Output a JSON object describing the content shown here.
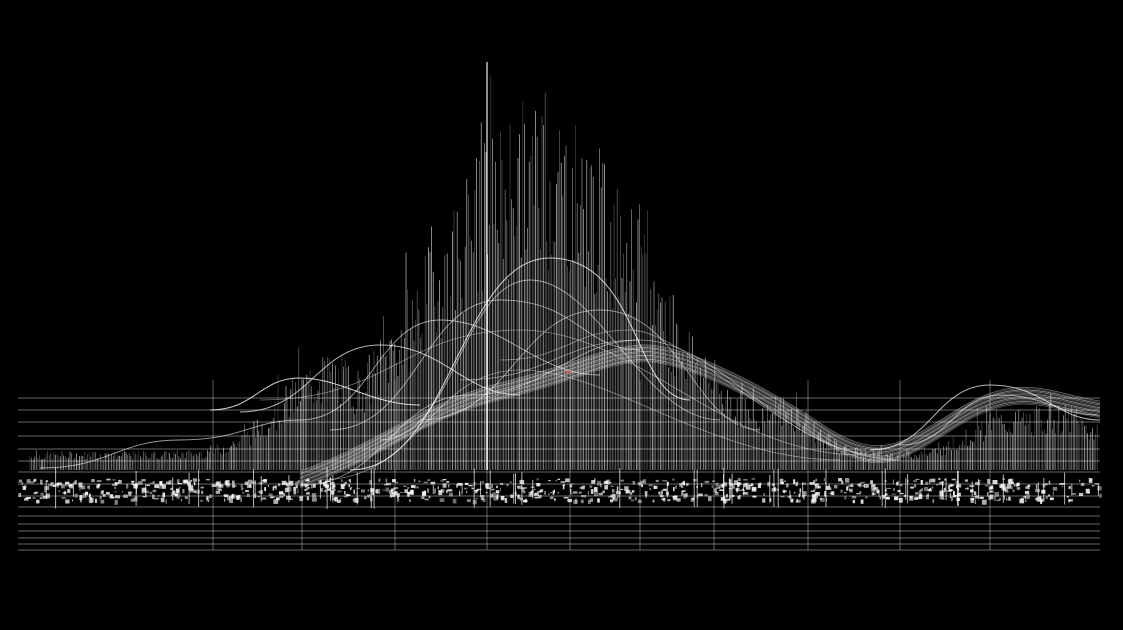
{
  "artwork": {
    "background": "#000000",
    "ink": "#ffffff",
    "accent": "#ff5a4a"
  }
}
